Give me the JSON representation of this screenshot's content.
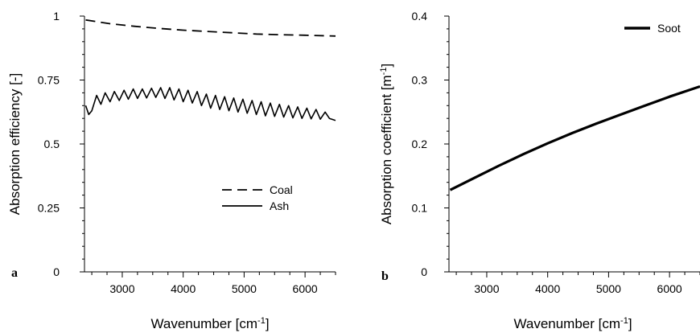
{
  "chart_data": [
    {
      "type": "line",
      "panel_label": "a",
      "xlabel": "Wavenumber [cm",
      "xlabel_sup": "-1",
      "xlabel_end": "]",
      "ylabel": "Absorption efficiency [-]",
      "xlim": [
        2380,
        6500
      ],
      "ylim": [
        0,
        1
      ],
      "xticks": [
        3000,
        4000,
        5000,
        6000
      ],
      "xtick_labels": [
        "3000",
        "4000",
        "5000",
        "6000"
      ],
      "yticks": [
        0,
        0.25,
        0.5,
        0.75,
        1
      ],
      "ytick_labels": [
        "0",
        "0.25",
        "0.5",
        "0.75",
        "1"
      ],
      "legend_position": "lower-right",
      "grid": false,
      "series": [
        {
          "name": "Coal",
          "style": "dashed",
          "x": [
            2400,
            2800,
            3200,
            3600,
            4000,
            4400,
            4800,
            5200,
            5600,
            6000,
            6500
          ],
          "y": [
            0.985,
            0.97,
            0.96,
            0.952,
            0.945,
            0.94,
            0.935,
            0.93,
            0.927,
            0.925,
            0.922
          ]
        },
        {
          "name": "Ash",
          "style": "solid",
          "x": [
            2400,
            2450,
            2500,
            2580,
            2650,
            2720,
            2800,
            2870,
            2950,
            3030,
            3100,
            3180,
            3250,
            3330,
            3400,
            3480,
            3550,
            3630,
            3700,
            3780,
            3850,
            3930,
            4000,
            4080,
            4150,
            4230,
            4300,
            4380,
            4450,
            4530,
            4600,
            4680,
            4750,
            4830,
            4900,
            4980,
            5050,
            5130,
            5200,
            5280,
            5350,
            5430,
            5500,
            5580,
            5650,
            5730,
            5800,
            5880,
            5950,
            6030,
            6100,
            6180,
            6250,
            6330,
            6400,
            6500
          ],
          "y": [
            0.65,
            0.615,
            0.63,
            0.69,
            0.655,
            0.7,
            0.665,
            0.705,
            0.67,
            0.71,
            0.675,
            0.715,
            0.678,
            0.715,
            0.68,
            0.718,
            0.682,
            0.72,
            0.678,
            0.72,
            0.672,
            0.715,
            0.665,
            0.71,
            0.66,
            0.705,
            0.65,
            0.695,
            0.64,
            0.69,
            0.635,
            0.685,
            0.63,
            0.68,
            0.625,
            0.675,
            0.62,
            0.67,
            0.615,
            0.665,
            0.61,
            0.66,
            0.608,
            0.655,
            0.605,
            0.65,
            0.602,
            0.645,
            0.6,
            0.64,
            0.598,
            0.635,
            0.597,
            0.625,
            0.6,
            0.592
          ]
        }
      ]
    },
    {
      "type": "line",
      "panel_label": "b",
      "xlabel": "Wavenumber [cm",
      "xlabel_sup": "-1",
      "xlabel_end": "]",
      "ylabel": "Absorption coefficient [m",
      "ylabel_sup": "-1",
      "ylabel_end": "]",
      "xlim": [
        2380,
        6500
      ],
      "ylim": [
        0,
        0.4
      ],
      "xticks": [
        3000,
        4000,
        5000,
        6000
      ],
      "xtick_labels": [
        "3000",
        "4000",
        "5000",
        "6000"
      ],
      "yticks": [
        0,
        0.1,
        0.2,
        0.3,
        0.4
      ],
      "ytick_labels": [
        "0",
        "0.1",
        "0.2",
        "0.3",
        "0.4"
      ],
      "legend_position": "top-right",
      "grid": false,
      "series": [
        {
          "name": "Soot",
          "style": "solid-thick",
          "x": [
            2400,
            2800,
            3200,
            3600,
            4000,
            4400,
            4800,
            5200,
            5600,
            6000,
            6500
          ],
          "y": [
            0.128,
            0.147,
            0.166,
            0.184,
            0.201,
            0.217,
            0.232,
            0.246,
            0.26,
            0.274,
            0.29
          ]
        }
      ]
    }
  ]
}
